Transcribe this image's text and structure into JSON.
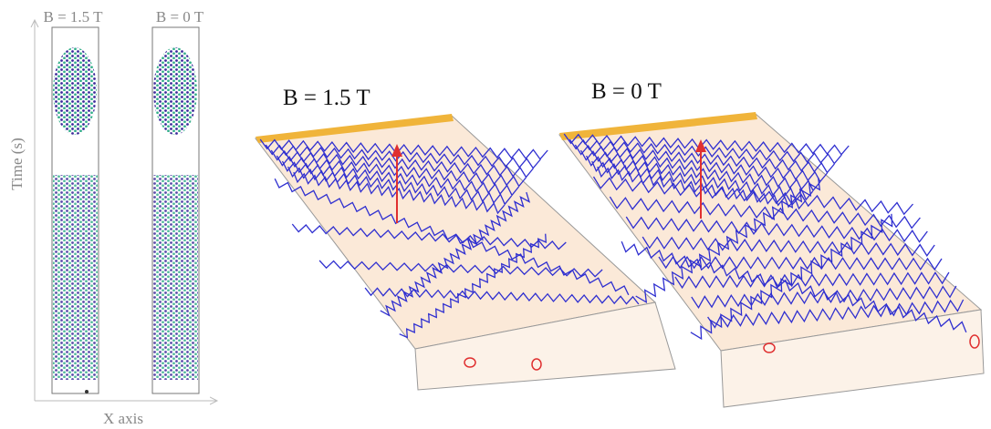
{
  "left_panel": {
    "column_labels": [
      "B = 1.5 T",
      "B = 0 T"
    ],
    "y_axis_label": "Time (s)",
    "x_axis_label": "X axis"
  },
  "right_panel": {
    "slab_labels": [
      "B = 1.5 T",
      "B = 0 T"
    ]
  }
}
